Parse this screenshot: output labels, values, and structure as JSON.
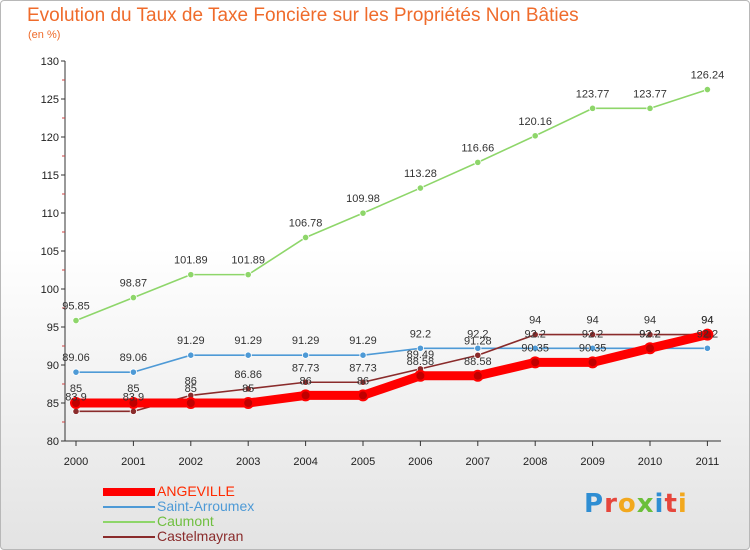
{
  "chart_data": {
    "type": "line",
    "title": "Evolution du Taux de Taxe Foncière sur les Propriétés Non Bâties",
    "subtitle": "(en %)",
    "xlabel": "",
    "ylabel": "",
    "x": [
      "2000",
      "2001",
      "2002",
      "2003",
      "2004",
      "2005",
      "2006",
      "2007",
      "2008",
      "2009",
      "2010",
      "2011"
    ],
    "ylim": [
      80,
      130
    ],
    "yticks": [
      80,
      85,
      90,
      95,
      100,
      105,
      110,
      115,
      120,
      125,
      130
    ],
    "grid": false,
    "legend_position": "bottom-left",
    "series": [
      {
        "name": "ANGEVILLE",
        "color": "#ff0000",
        "values": [
          85,
          85,
          85,
          85,
          86,
          86,
          88.58,
          88.58,
          90.35,
          90.35,
          92.2,
          94
        ],
        "labels": [
          "85",
          "85",
          "85",
          "85",
          "86",
          "86",
          "88.58",
          "88.58",
          "90.35",
          "90.35",
          "92.2",
          "94"
        ]
      },
      {
        "name": "Saint-Arroumex",
        "color": "#4e9ad6",
        "values": [
          89.06,
          89.06,
          91.29,
          91.29,
          91.29,
          91.29,
          92.2,
          92.2,
          92.2,
          92.2,
          92.2,
          92.2
        ],
        "labels": [
          "89.06",
          "89.06",
          "91.29",
          "91.29",
          "91.29",
          "91.29",
          "92.2",
          "92.2",
          "92.2",
          "92.2",
          "92.2",
          "92.2"
        ]
      },
      {
        "name": "Caumont",
        "color": "#8ed66a",
        "values": [
          95.85,
          98.87,
          101.89,
          101.89,
          106.78,
          109.98,
          113.28,
          116.66,
          120.16,
          123.77,
          123.77,
          126.24
        ],
        "labels": [
          "95.85",
          "98.87",
          "101.89",
          "101.89",
          "106.78",
          "109.98",
          "113.28",
          "116.66",
          "120.16",
          "123.77",
          "123.77",
          "126.24"
        ]
      },
      {
        "name": "Castelmayran",
        "color": "#8a2b2b",
        "values": [
          83.9,
          83.9,
          86,
          86.86,
          87.73,
          87.73,
          89.49,
          91.28,
          94,
          94,
          94,
          94
        ],
        "labels": [
          "83.9",
          "83.9",
          "86",
          "86.86",
          "87.73",
          "87.73",
          "89.49",
          "91.28",
          "94",
          "94",
          "94",
          "94"
        ]
      }
    ]
  },
  "brand": {
    "letters": [
      "P",
      "r",
      "o",
      "x",
      "i",
      "t",
      "i"
    ],
    "colors": [
      "#2f8ed3",
      "#e6463c",
      "#f2a81e",
      "#6bbf3a",
      "#2f8ed3",
      "#e6463c",
      "#f2a81e"
    ]
  }
}
